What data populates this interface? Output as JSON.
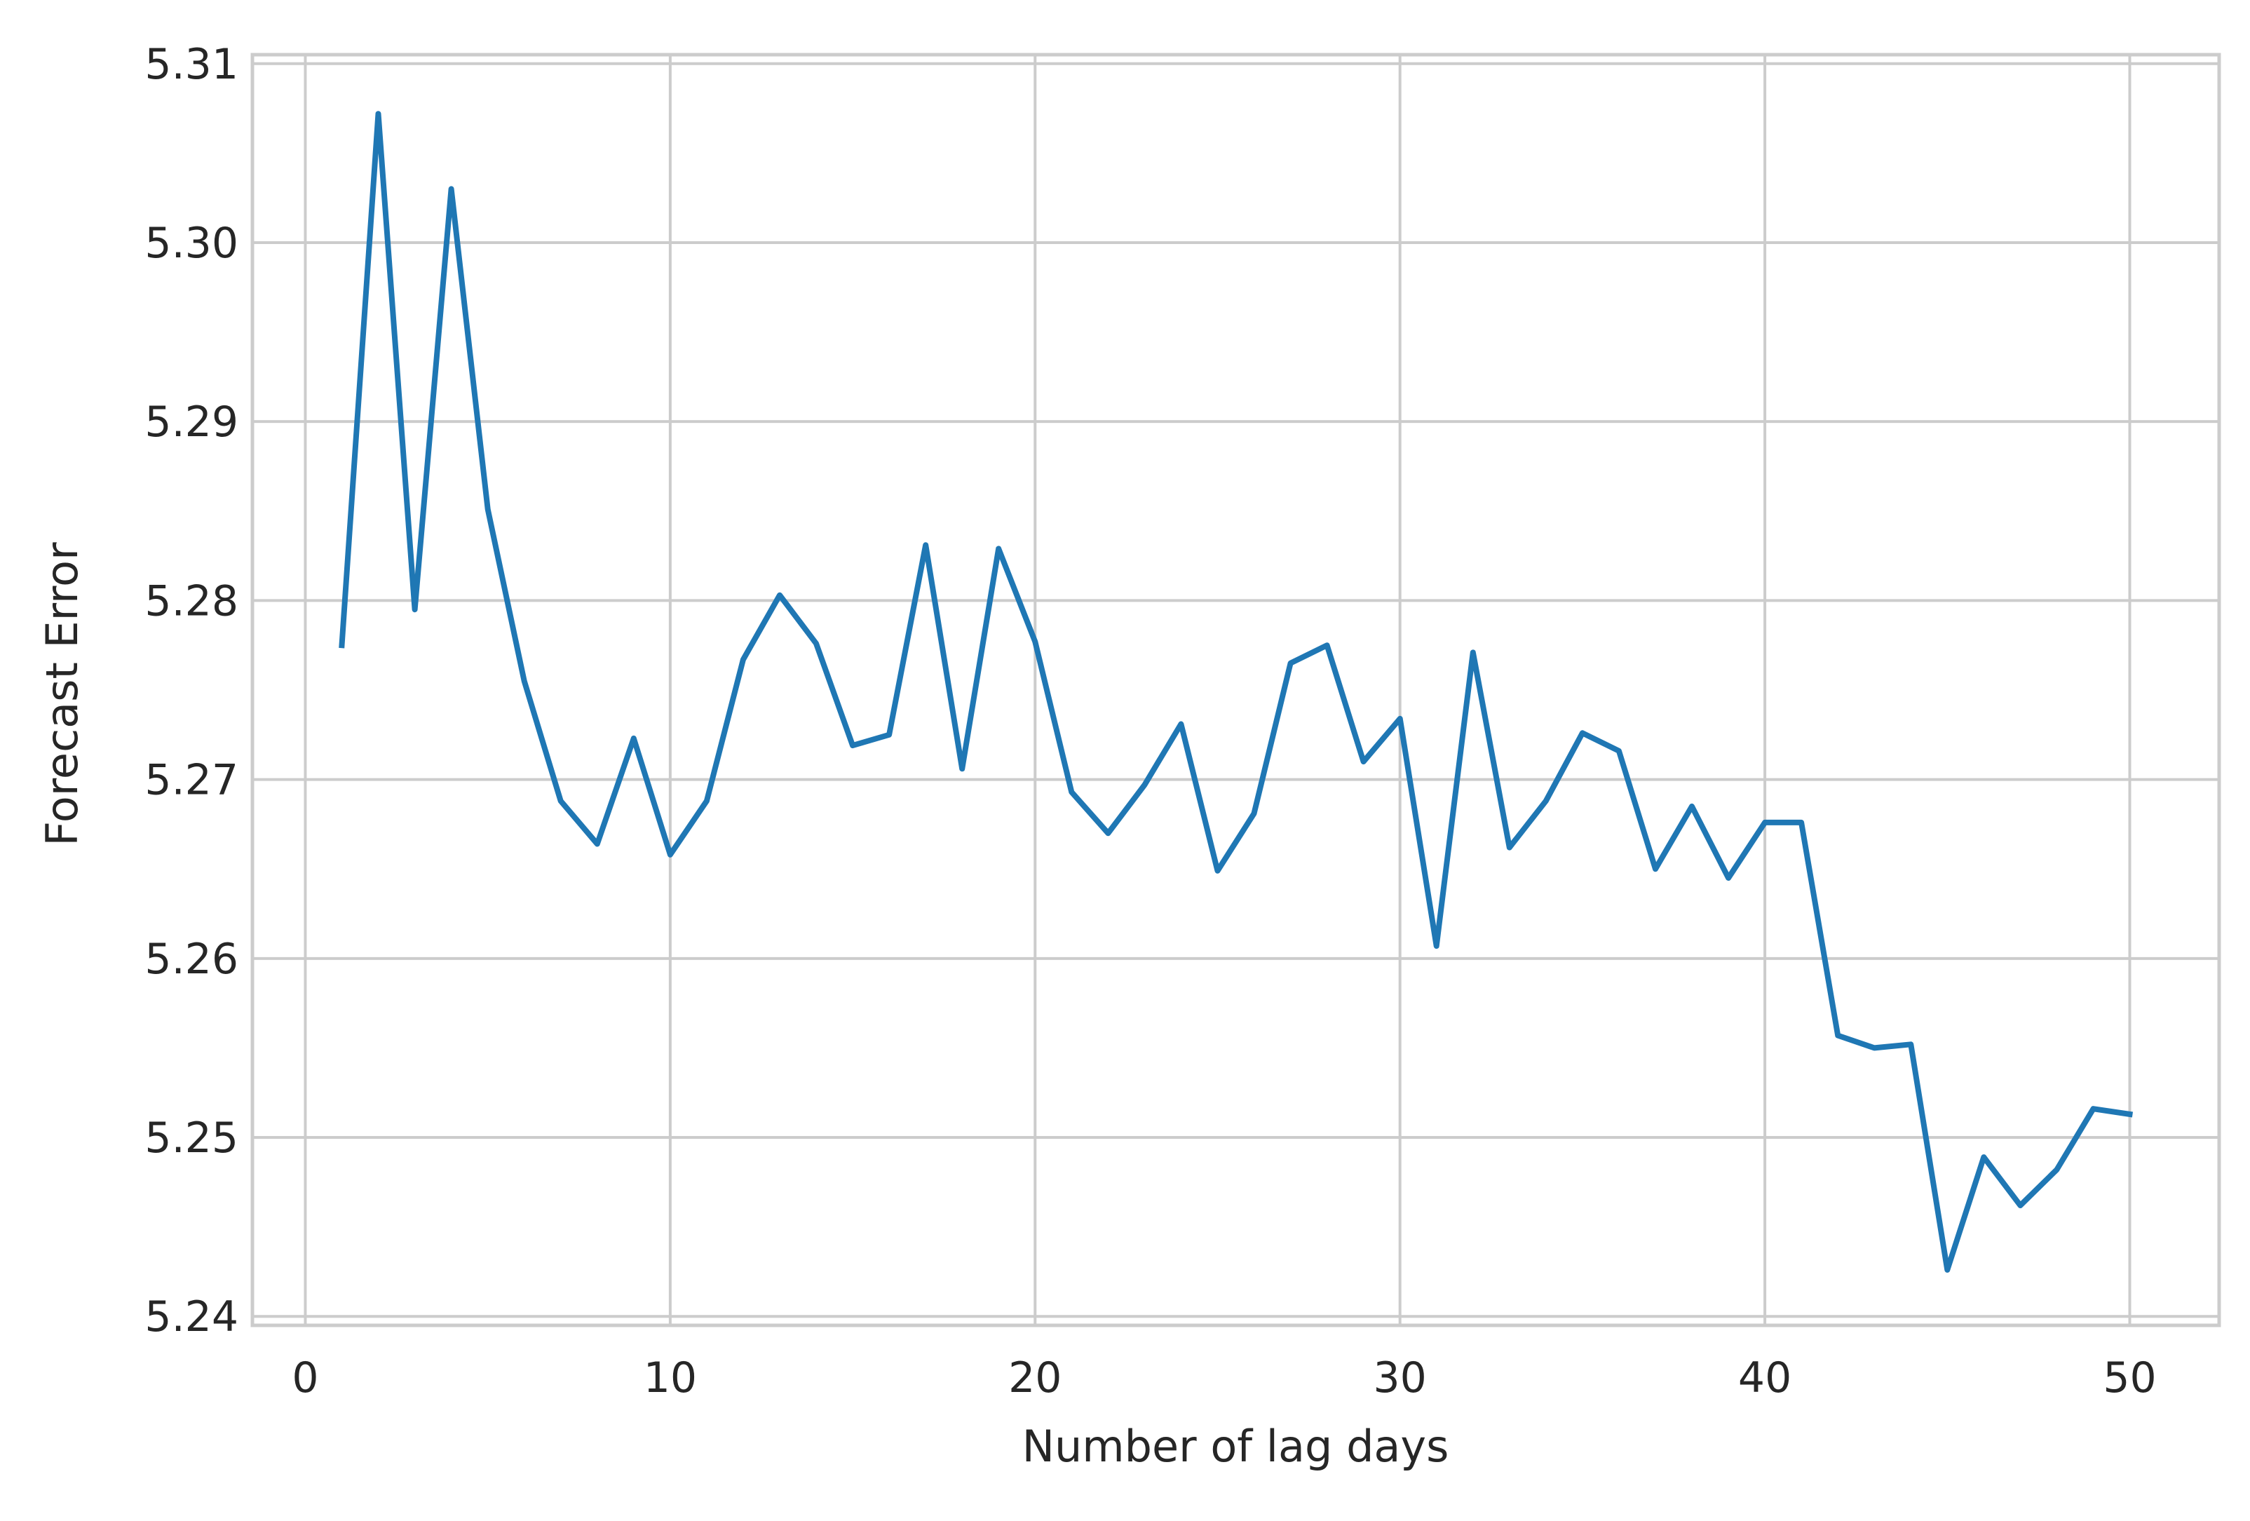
{
  "chart_data": {
    "type": "line",
    "title": "",
    "xlabel": "Number of lag days",
    "ylabel": "Forecast Error",
    "xlim": [
      -1.45,
      52.45
    ],
    "ylim": [
      5.2395,
      5.3105
    ],
    "xticks": [
      0,
      10,
      20,
      30,
      40,
      50
    ],
    "xtick_labels": [
      "0",
      "10",
      "20",
      "30",
      "40",
      "50"
    ],
    "yticks": [
      5.24,
      5.25,
      5.26,
      5.27,
      5.28,
      5.29,
      5.3,
      5.31
    ],
    "ytick_labels": [
      "5.24",
      "5.25",
      "5.26",
      "5.27",
      "5.28",
      "5.29",
      "5.30",
      "5.31"
    ],
    "grid": true,
    "colors": {
      "line": "#1f77b4",
      "grid": "#cccccc",
      "frame": "#cccccc"
    },
    "series": [
      {
        "x": [
          1,
          2,
          3,
          4,
          5,
          6,
          7,
          8,
          9,
          10,
          11,
          12,
          13,
          14,
          15,
          16,
          17,
          18,
          19,
          20,
          21,
          22,
          23,
          24,
          25,
          26,
          27,
          28,
          29,
          30,
          31,
          32,
          33,
          34,
          35,
          36,
          37,
          38,
          39,
          40,
          41,
          42,
          43,
          44,
          45,
          46,
          47,
          48,
          49,
          50
        ],
        "values": [
          5.2775,
          5.3072,
          5.2795,
          5.303,
          5.2851,
          5.2755,
          5.2688,
          5.2664,
          5.2723,
          5.2658,
          5.2688,
          5.2767,
          5.2803,
          5.2776,
          5.2719,
          5.2725,
          5.2831,
          5.2706,
          5.2829,
          5.2777,
          5.2693,
          5.267,
          5.2697,
          5.2731,
          5.2649,
          5.2681,
          5.2765,
          5.2775,
          5.271,
          5.2734,
          5.2607,
          5.2771,
          5.2662,
          5.2688,
          5.2726,
          5.2716,
          5.265,
          5.2685,
          5.2645,
          5.2676,
          5.2676,
          5.2557,
          5.255,
          5.2552,
          5.2426,
          5.2489,
          5.2462,
          5.2482,
          5.2516,
          5.2513
        ]
      }
    ]
  }
}
